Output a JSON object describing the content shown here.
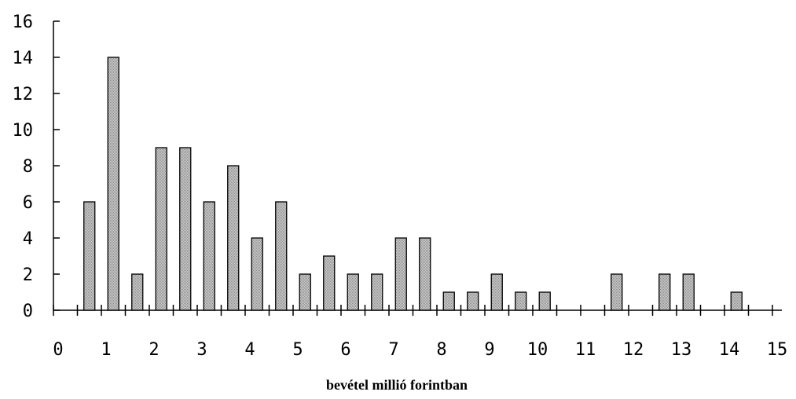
{
  "chart_data": {
    "type": "bar",
    "title": "",
    "xlabel": "bevétel millió forintban",
    "ylabel": "",
    "x": [
      0.75,
      1.25,
      1.75,
      2.25,
      2.75,
      3.25,
      3.75,
      4.25,
      4.75,
      5.25,
      5.75,
      6.25,
      6.75,
      7.25,
      7.75,
      8.25,
      8.75,
      9.25,
      9.75,
      10.25,
      11.75,
      12.75,
      13.25,
      14.25
    ],
    "values": [
      6,
      14,
      2,
      9,
      9,
      6,
      8,
      4,
      6,
      2,
      3,
      2,
      2,
      4,
      4,
      1,
      1,
      2,
      1,
      1,
      2,
      2,
      2,
      1
    ],
    "xlim": [
      0,
      15
    ],
    "ylim": [
      0,
      16
    ],
    "xticks": [
      "0",
      "1",
      "2",
      "3",
      "4",
      "5",
      "6",
      "7",
      "8",
      "9",
      "10",
      "11",
      "12",
      "13",
      "14",
      "15"
    ],
    "yticks": [
      "0",
      "2",
      "4",
      "6",
      "8",
      "10",
      "12",
      "14",
      "16"
    ],
    "grid": false,
    "bar_color": "#b3b3b3"
  }
}
